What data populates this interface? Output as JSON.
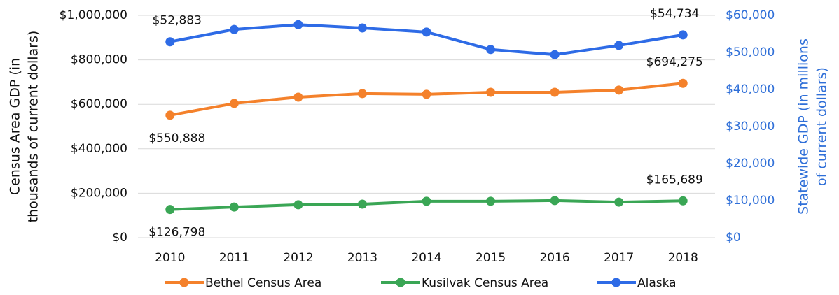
{
  "chart_data": {
    "type": "line",
    "ylabel": [
      "Census Area GDP (in",
      "thousands of current dollars)"
    ],
    "y2label": [
      "Statewide GDP (in millions",
      "of current dollars)"
    ],
    "categories": [
      "2010",
      "2011",
      "2012",
      "2013",
      "2014",
      "2015",
      "2016",
      "2017",
      "2018"
    ],
    "series": [
      {
        "name": "Bethel Census Area",
        "color": "#f4812b",
        "values": [
          550888,
          604000,
          632000,
          648000,
          645000,
          654000,
          654000,
          664000,
          694275
        ],
        "value_labels": [
          "$550,888",
          null,
          null,
          null,
          null,
          null,
          null,
          null,
          "$694,275"
        ]
      },
      {
        "name": "Kusilvak Census Area",
        "color": "#3aa655",
        "values": [
          126798,
          138000,
          148000,
          151000,
          164000,
          164000,
          167000,
          160000,
          165689
        ],
        "value_labels": [
          "$126,798",
          null,
          null,
          null,
          null,
          null,
          null,
          null,
          "$165,689"
        ]
      },
      {
        "name": "Alaska",
        "color": "#2e6be6",
        "axis": "y2",
        "values": [
          52883,
          56200,
          57500,
          56600,
          55500,
          50800,
          49400,
          51900,
          54734
        ],
        "value_labels": [
          "$52,883",
          null,
          null,
          null,
          null,
          null,
          null,
          null,
          "$54,734"
        ]
      }
    ],
    "ylim": [
      0,
      1000000
    ],
    "yticks": [
      {
        "value": 0,
        "label": "$0"
      },
      {
        "value": 200000,
        "label": "$200,000"
      },
      {
        "value": 400000,
        "label": "$400,000"
      },
      {
        "value": 600000,
        "label": "$600,000"
      },
      {
        "value": 800000,
        "label": "$800,000"
      },
      {
        "value": 1000000,
        "label": "$1,000,000"
      }
    ],
    "y2lim": [
      0,
      60000
    ],
    "y2ticks": [
      {
        "value": 0,
        "label": "$0"
      },
      {
        "value": 10000,
        "label": "$10,000"
      },
      {
        "value": 20000,
        "label": "$20,000"
      },
      {
        "value": 30000,
        "label": "$30,000"
      },
      {
        "value": 40000,
        "label": "$40,000"
      },
      {
        "value": 50000,
        "label": "$50,000"
      },
      {
        "value": 60000,
        "label": "$60,000"
      }
    ],
    "y2color": "#2f6fd8",
    "grid": true,
    "legend": "bottom"
  }
}
